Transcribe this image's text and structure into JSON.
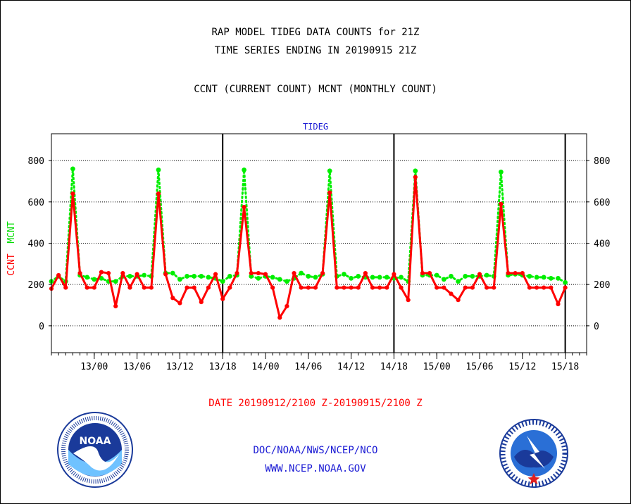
{
  "header": {
    "title_line1": "RAP MODEL TIDEG DATA COUNTS for 21Z",
    "title_line2": "TIME SERIES ENDING IN 20190915 21Z",
    "subtitle": "CCNT (CURRENT COUNT) MCNT (MONTHLY COUNT)"
  },
  "footer": {
    "date_range": "DATE 20190912/2100 Z-20190915/2100 Z",
    "agency": "DOC/NOAA/NWS/NCEP/NCO",
    "website": "WWW.NCEP.NOAA.GOV"
  },
  "logos": {
    "left": {
      "name": "NOAA",
      "icon": "noaa-seal-icon"
    },
    "right": {
      "name": "NATIONAL WEATHER SERVICE",
      "icon": "nws-seal-icon"
    }
  },
  "chart_data": {
    "type": "line",
    "title": "TIDEG",
    "ylabel_parts": [
      {
        "text": "CCNT",
        "color": "#ff0000"
      },
      {
        "text": "MCNT",
        "color": "#00ff00"
      }
    ],
    "ylim": [
      -130,
      930
    ],
    "yticks": [
      0,
      200,
      400,
      600,
      800
    ],
    "grid": true,
    "x_start_hour": -3,
    "x_end_hour": 72,
    "xtick_labels": [
      {
        "hour": 3,
        "label": "13/00"
      },
      {
        "hour": 9,
        "label": "13/06"
      },
      {
        "hour": 15,
        "label": "13/12"
      },
      {
        "hour": 21,
        "label": "13/18"
      },
      {
        "hour": 27,
        "label": "14/00"
      },
      {
        "hour": 33,
        "label": "14/06"
      },
      {
        "hour": 39,
        "label": "14/12"
      },
      {
        "hour": 45,
        "label": "14/18"
      },
      {
        "hour": 51,
        "label": "15/00"
      },
      {
        "hour": 57,
        "label": "15/06"
      },
      {
        "hour": 63,
        "label": "15/12"
      },
      {
        "hour": 69,
        "label": "15/18"
      }
    ],
    "day_boundaries": [
      21,
      45,
      69
    ],
    "series": [
      {
        "name": "CCNT",
        "color": "#ff0000",
        "values": [
          180,
          245,
          185,
          640,
          255,
          185,
          185,
          260,
          255,
          95,
          255,
          185,
          250,
          185,
          185,
          640,
          250,
          135,
          110,
          185,
          185,
          115,
          185,
          250,
          130,
          185,
          255,
          575,
          255,
          255,
          250,
          185,
          40,
          95,
          255,
          185,
          185,
          185,
          255,
          645,
          185,
          185,
          185,
          185,
          255,
          185,
          185,
          185,
          250,
          185,
          125,
          720,
          255,
          255,
          185,
          185,
          155,
          125,
          185,
          185,
          250,
          185,
          185,
          590,
          255,
          255,
          255,
          185,
          185,
          185,
          185,
          105,
          185
        ]
      },
      {
        "name": "MCNT",
        "color": "#00ff00",
        "values": [
          215,
          240,
          215,
          760,
          245,
          235,
          225,
          230,
          215,
          215,
          240,
          240,
          240,
          245,
          240,
          755,
          255,
          255,
          225,
          240,
          240,
          240,
          235,
          230,
          215,
          240,
          245,
          755,
          240,
          230,
          240,
          235,
          225,
          215,
          230,
          255,
          240,
          235,
          250,
          750,
          240,
          250,
          230,
          240,
          235,
          235,
          235,
          235,
          230,
          235,
          215,
          750,
          245,
          245,
          245,
          225,
          240,
          215,
          240,
          240,
          240,
          245,
          240,
          745,
          245,
          250,
          245,
          240,
          235,
          235,
          230,
          230,
          210
        ]
      }
    ]
  }
}
